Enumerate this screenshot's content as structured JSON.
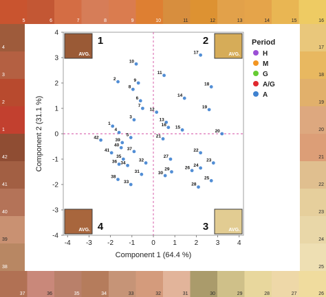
{
  "chart_data": {
    "type": "scatter",
    "xlabel": "Component 1  (64.4 %)",
    "ylabel": "Component 2  (31.1 %)",
    "xlim": [
      -4.2,
      4.2
    ],
    "ylim": [
      -4,
      4
    ],
    "xticks": [
      -4,
      -3,
      -2,
      -1,
      0,
      1,
      2,
      3,
      4
    ],
    "yticks": [
      -4,
      -3,
      -2,
      -1,
      0,
      1,
      2,
      3,
      4
    ],
    "legend": {
      "title": "Period",
      "placement": "right",
      "entries": [
        {
          "label": "H",
          "color": "#9b4fd6"
        },
        {
          "label": "M",
          "color": "#f29522"
        },
        {
          "label": "G",
          "color": "#66cc33"
        },
        {
          "label": "A/G",
          "color": "#e0282e"
        },
        {
          "label": "A",
          "color": "#3f82d0"
        }
      ]
    },
    "quadrants": [
      {
        "number": "1",
        "avg_label": "AVG.",
        "color": "#9a5a36"
      },
      {
        "number": "2",
        "avg_label": "AVG.",
        "color": "#d6ac58"
      },
      {
        "number": "3",
        "avg_label": "AVG.",
        "color": "#e2cc92"
      },
      {
        "number": "4",
        "avg_label": "AVG.",
        "color": "#a8663d"
      }
    ],
    "point_labels": [
      {
        "t": "17",
        "x": 2.2,
        "y": 3.1
      },
      {
        "t": "10",
        "x": -0.8,
        "y": 2.75
      },
      {
        "t": "11",
        "x": 0.5,
        "y": 2.3
      },
      {
        "t": "2",
        "x": -1.65,
        "y": 2.05
      },
      {
        "t": "9",
        "x": -0.7,
        "y": 2.0
      },
      {
        "t": "18",
        "x": 2.7,
        "y": 1.85
      },
      {
        "t": "8",
        "x": -0.95,
        "y": 1.75
      },
      {
        "t": "14",
        "x": 1.45,
        "y": 1.4
      },
      {
        "t": "6",
        "x": -0.6,
        "y": 1.3
      },
      {
        "t": "7",
        "x": -0.5,
        "y": 1.0
      },
      {
        "t": "19",
        "x": 2.6,
        "y": 0.95
      },
      {
        "t": "12",
        "x": 0.15,
        "y": 0.85
      },
      {
        "t": "13",
        "x": 0.6,
        "y": 0.45
      },
      {
        "t": "3",
        "x": -0.9,
        "y": 0.55
      },
      {
        "t": "1",
        "x": -1.9,
        "y": 0.3
      },
      {
        "t": "16",
        "x": 0.7,
        "y": 0.25
      },
      {
        "t": "15",
        "x": 1.35,
        "y": 0.15
      },
      {
        "t": "4",
        "x": -1.6,
        "y": 0.05
      },
      {
        "t": "20",
        "x": 3.2,
        "y": 0.0
      },
      {
        "t": "5",
        "x": -1.05,
        "y": -0.15
      },
      {
        "t": "21",
        "x": 0.45,
        "y": -0.2
      },
      {
        "t": "39",
        "x": -1.45,
        "y": -0.35
      },
      {
        "t": "42",
        "x": -2.45,
        "y": -0.25
      },
      {
        "t": "40",
        "x": -1.5,
        "y": -0.55
      },
      {
        "t": "41",
        "x": -1.95,
        "y": -0.75
      },
      {
        "t": "37",
        "x": -0.9,
        "y": -0.7
      },
      {
        "t": "22",
        "x": 2.2,
        "y": -0.75
      },
      {
        "t": "27",
        "x": 0.8,
        "y": -1.0
      },
      {
        "t": "35",
        "x": -1.4,
        "y": -1.0
      },
      {
        "t": "36",
        "x": -1.6,
        "y": -1.2
      },
      {
        "t": "23",
        "x": 2.8,
        "y": -1.15
      },
      {
        "t": "32",
        "x": -0.35,
        "y": -1.15
      },
      {
        "t": "34",
        "x": -1.2,
        "y": -1.25
      },
      {
        "t": "24",
        "x": 2.2,
        "y": -1.35
      },
      {
        "t": "26",
        "x": 1.8,
        "y": -1.45
      },
      {
        "t": "29",
        "x": 0.85,
        "y": -1.5
      },
      {
        "t": "31",
        "x": -0.55,
        "y": -1.6
      },
      {
        "t": "38",
        "x": -1.65,
        "y": -1.8
      },
      {
        "t": "30",
        "x": 0.55,
        "y": -1.65
      },
      {
        "t": "25",
        "x": 2.7,
        "y": -1.85
      },
      {
        "t": "33",
        "x": -1.05,
        "y": -2.0
      },
      {
        "t": "28",
        "x": 2.1,
        "y": -2.1
      }
    ]
  },
  "swatches": {
    "top": [
      {
        "n": "5",
        "color": "#c9542f"
      },
      {
        "n": "6",
        "color": "#c35734"
      },
      {
        "n": "7",
        "color": "#d46d44"
      },
      {
        "n": "8",
        "color": "#d67d58"
      },
      {
        "n": "9",
        "color": "#da7c4f"
      },
      {
        "n": "10",
        "color": "#de7f32"
      },
      {
        "n": "11",
        "color": "#d78e3e"
      },
      {
        "n": "12",
        "color": "#dd9232"
      },
      {
        "n": "13",
        "color": "#e2a14a"
      },
      {
        "n": "14",
        "color": "#e5a44a"
      },
      {
        "n": "15",
        "color": "#e9b653"
      },
      {
        "n": "16",
        "color": "#eecb63"
      }
    ],
    "left": [
      {
        "n": "4",
        "color": "#9e5b3b"
      },
      {
        "n": "3",
        "color": "#b46042"
      },
      {
        "n": "2",
        "color": "#b84a2e"
      },
      {
        "n": "1",
        "color": "#c2402f"
      },
      {
        "n": "42",
        "color": "#8f4d33"
      },
      {
        "n": "41",
        "color": "#a25f43"
      },
      {
        "n": "40",
        "color": "#b47358"
      },
      {
        "n": "39",
        "color": "#c99172"
      },
      {
        "n": "38",
        "color": "#b88763"
      }
    ],
    "right": [
      {
        "n": "17",
        "color": "#e9c77b"
      },
      {
        "n": "18",
        "color": "#e8b860"
      },
      {
        "n": "19",
        "color": "#e1b06b"
      },
      {
        "n": "20",
        "color": "#dda87f"
      },
      {
        "n": "21",
        "color": "#dc9e77"
      },
      {
        "n": "22",
        "color": "#e0bf8f"
      },
      {
        "n": "23",
        "color": "#e6cf9c"
      },
      {
        "n": "24",
        "color": "#e9d7a8"
      },
      {
        "n": "25",
        "color": "#eedfb3"
      }
    ],
    "bottom": [
      {
        "n": "37",
        "color": "#b17154"
      },
      {
        "n": "36",
        "color": "#c9887a"
      },
      {
        "n": "35",
        "color": "#b9806a"
      },
      {
        "n": "34",
        "color": "#b57c5c"
      },
      {
        "n": "33",
        "color": "#c69477"
      },
      {
        "n": "32",
        "color": "#d49b7c"
      },
      {
        "n": "31",
        "color": "#e2b49a"
      },
      {
        "n": "30",
        "color": "#aa9b6b"
      },
      {
        "n": "29",
        "color": "#cfc089"
      },
      {
        "n": "28",
        "color": "#e8d79d"
      },
      {
        "n": "27",
        "color": "#eed8a8"
      },
      {
        "n": "26",
        "color": "#f0dc9e"
      }
    ]
  }
}
